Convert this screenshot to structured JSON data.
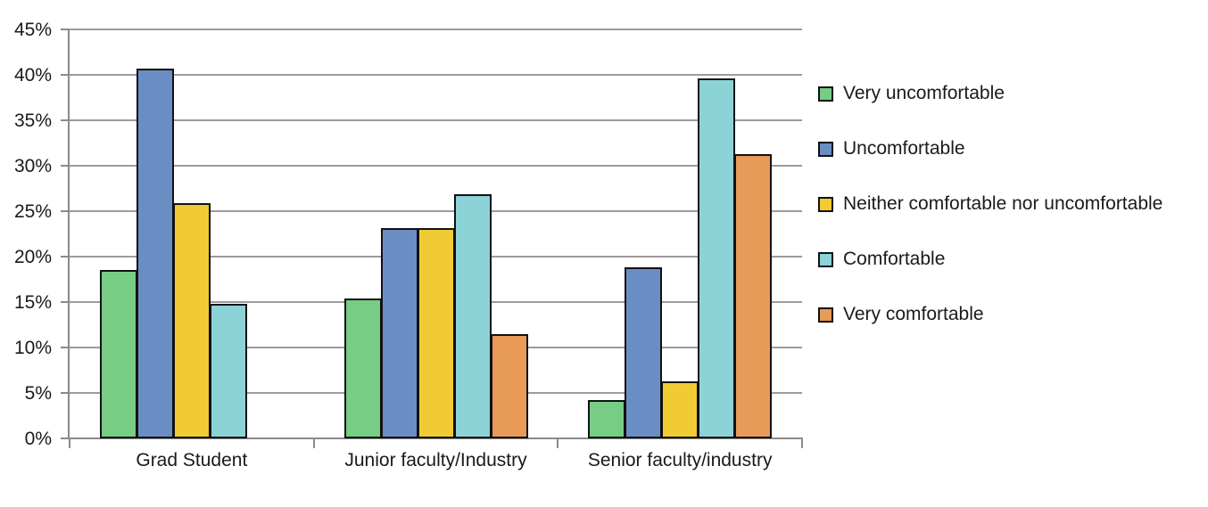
{
  "chart_data": {
    "type": "bar",
    "title": "",
    "categories": [
      "Grad Student",
      "Junior faculty/Industry",
      "Senior faculty/industry"
    ],
    "series": [
      {
        "name": "Very uncomfortable",
        "color": "#76CD83",
        "values": [
          18.5,
          15.4,
          4.2
        ]
      },
      {
        "name": "Uncomfortable",
        "color": "#6A8DC4",
        "values": [
          40.7,
          23.1,
          18.8
        ]
      },
      {
        "name": "Neither comfortable nor uncomfortable",
        "color": "#F0CB34",
        "values": [
          25.9,
          23.1,
          6.3
        ]
      },
      {
        "name": "Comfortable",
        "color": "#8CD3D8",
        "values": [
          14.8,
          26.9,
          39.6
        ]
      },
      {
        "name": "Very comfortable",
        "color": "#E89A59",
        "values": [
          0,
          11.5,
          31.3
        ]
      }
    ],
    "y_axis": {
      "min": 0,
      "max": 45,
      "step": 5,
      "format": "percent",
      "tick_labels": [
        "0%",
        "5%",
        "10%",
        "15%",
        "20%",
        "25%",
        "30%",
        "35%",
        "40%",
        "45%"
      ]
    },
    "legend_position": "right",
    "grid": true,
    "colors": {
      "gridline": "#9B9B9B",
      "axis": "#8A8A8A",
      "bar_border": "#111111",
      "text": "#1A1A1A",
      "background": "#FFFFFF"
    }
  }
}
